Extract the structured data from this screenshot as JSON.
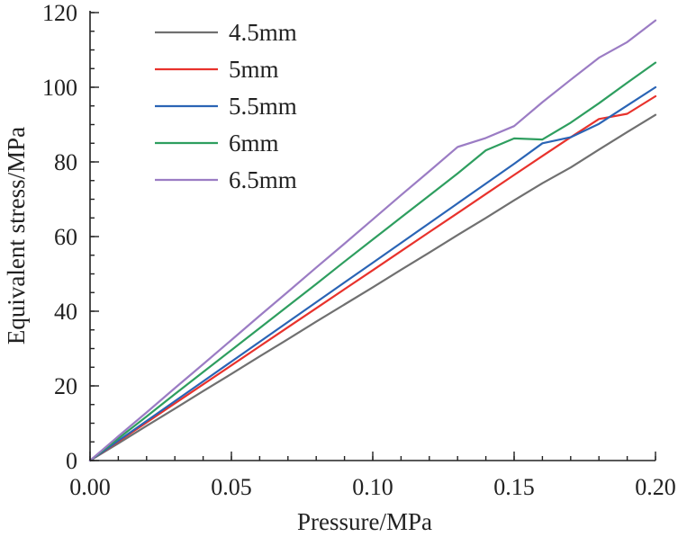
{
  "chart_data": {
    "type": "line",
    "title": "",
    "xlabel": "Pressure/MPa",
    "ylabel": "Equivalent stress/MPa",
    "xlim": [
      0,
      0.2
    ],
    "ylim": [
      0,
      120
    ],
    "x_ticks": [
      "0.00",
      "0.05",
      "0.10",
      "0.15",
      "0.20"
    ],
    "x_tick_values": [
      0,
      0.05,
      0.1,
      0.15,
      0.2
    ],
    "y_ticks": [
      "0",
      "20",
      "40",
      "60",
      "80",
      "100",
      "120"
    ],
    "y_tick_values": [
      0,
      20,
      40,
      60,
      80,
      100,
      120
    ],
    "x_minor_step": 0.01,
    "y_minor_step": 5,
    "grid": false,
    "legend_position": "top-left",
    "series": [
      {
        "name": "4.5mm",
        "color": "#707070",
        "points": [
          [
            0,
            0
          ],
          [
            0.01,
            4.6
          ],
          [
            0.02,
            9.3
          ],
          [
            0.03,
            13.9
          ],
          [
            0.04,
            18.6
          ],
          [
            0.05,
            23.2
          ],
          [
            0.06,
            27.9
          ],
          [
            0.07,
            32.5
          ],
          [
            0.08,
            37.2
          ],
          [
            0.09,
            41.8
          ],
          [
            0.1,
            46.4
          ],
          [
            0.11,
            51.1
          ],
          [
            0.12,
            55.7
          ],
          [
            0.13,
            60.4
          ],
          [
            0.14,
            65.0
          ],
          [
            0.15,
            69.7
          ],
          [
            0.16,
            74.3
          ],
          [
            0.17,
            78.5
          ],
          [
            0.18,
            83.3
          ],
          [
            0.19,
            88.0
          ],
          [
            0.2,
            92.6
          ]
        ]
      },
      {
        "name": "5mm",
        "color": "#e8322c",
        "points": [
          [
            0,
            0
          ],
          [
            0.01,
            5.1
          ],
          [
            0.02,
            10.2
          ],
          [
            0.03,
            15.3
          ],
          [
            0.04,
            20.4
          ],
          [
            0.05,
            25.5
          ],
          [
            0.06,
            30.6
          ],
          [
            0.07,
            35.7
          ],
          [
            0.08,
            40.8
          ],
          [
            0.09,
            45.9
          ],
          [
            0.1,
            51.0
          ],
          [
            0.11,
            56.1
          ],
          [
            0.12,
            61.2
          ],
          [
            0.13,
            66.3
          ],
          [
            0.14,
            71.4
          ],
          [
            0.15,
            76.5
          ],
          [
            0.16,
            81.6
          ],
          [
            0.17,
            86.6
          ],
          [
            0.18,
            91.5
          ],
          [
            0.19,
            92.9
          ],
          [
            0.2,
            97.6
          ]
        ]
      },
      {
        "name": "5.5mm",
        "color": "#2a64b5",
        "points": [
          [
            0,
            0
          ],
          [
            0.01,
            5.3
          ],
          [
            0.02,
            10.6
          ],
          [
            0.03,
            15.9
          ],
          [
            0.04,
            21.2
          ],
          [
            0.05,
            26.5
          ],
          [
            0.06,
            31.8
          ],
          [
            0.07,
            37.1
          ],
          [
            0.08,
            42.4
          ],
          [
            0.09,
            47.7
          ],
          [
            0.1,
            53.0
          ],
          [
            0.11,
            58.3
          ],
          [
            0.12,
            63.6
          ],
          [
            0.13,
            68.9
          ],
          [
            0.14,
            74.2
          ],
          [
            0.15,
            79.5
          ],
          [
            0.16,
            85.0
          ],
          [
            0.17,
            86.6
          ],
          [
            0.18,
            90.2
          ],
          [
            0.19,
            95.1
          ],
          [
            0.2,
            100.0
          ]
        ]
      },
      {
        "name": "6mm",
        "color": "#2e9e5f",
        "points": [
          [
            0,
            0
          ],
          [
            0.01,
            5.9
          ],
          [
            0.02,
            11.8
          ],
          [
            0.03,
            17.8
          ],
          [
            0.04,
            23.7
          ],
          [
            0.05,
            29.6
          ],
          [
            0.06,
            35.5
          ],
          [
            0.07,
            41.4
          ],
          [
            0.08,
            47.3
          ],
          [
            0.09,
            53.3
          ],
          [
            0.1,
            59.2
          ],
          [
            0.11,
            65.1
          ],
          [
            0.12,
            71.0
          ],
          [
            0.13,
            76.9
          ],
          [
            0.14,
            83.1
          ],
          [
            0.15,
            86.3
          ],
          [
            0.16,
            86.0
          ],
          [
            0.17,
            90.5
          ],
          [
            0.18,
            95.7
          ],
          [
            0.19,
            101.2
          ],
          [
            0.2,
            106.6
          ]
        ]
      },
      {
        "name": "6.5mm",
        "color": "#9b7cc4",
        "points": [
          [
            0,
            0
          ],
          [
            0.01,
            6.5
          ],
          [
            0.02,
            12.9
          ],
          [
            0.03,
            19.4
          ],
          [
            0.04,
            25.8
          ],
          [
            0.05,
            32.3
          ],
          [
            0.06,
            38.8
          ],
          [
            0.07,
            45.2
          ],
          [
            0.08,
            51.7
          ],
          [
            0.09,
            58.1
          ],
          [
            0.1,
            64.6
          ],
          [
            0.11,
            71.1
          ],
          [
            0.12,
            77.5
          ],
          [
            0.13,
            84.0
          ],
          [
            0.14,
            86.4
          ],
          [
            0.15,
            89.6
          ],
          [
            0.16,
            96.0
          ],
          [
            0.17,
            102.0
          ],
          [
            0.18,
            107.9
          ],
          [
            0.19,
            112.1
          ],
          [
            0.2,
            117.9
          ]
        ]
      }
    ]
  }
}
